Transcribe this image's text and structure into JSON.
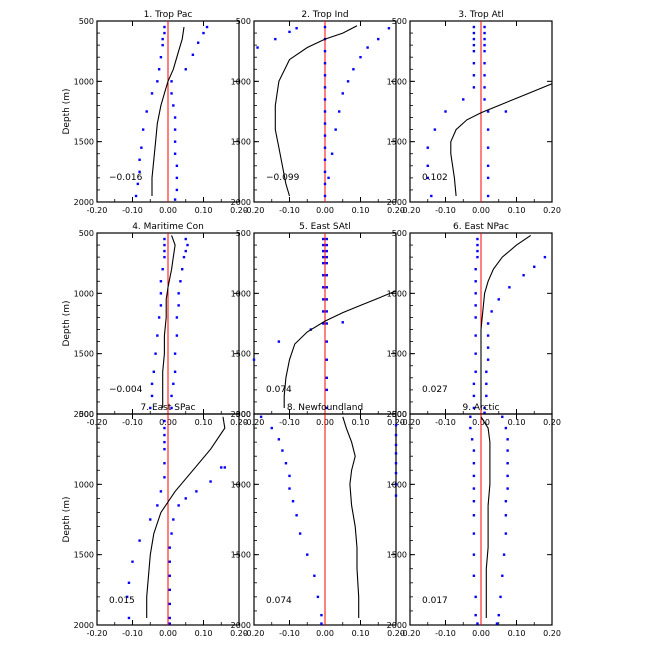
{
  "ylabel": "Depth (m)",
  "styles": {
    "profile": "#000000",
    "dots": "#0000ff",
    "zero": "#ff0000"
  },
  "chart_data": [
    {
      "type": "line",
      "title": "1. Trop Pac",
      "value_label": "-0.016",
      "xlim": [
        -0.2,
        0.2
      ],
      "ylim": [
        2000,
        500
      ],
      "xticks": [
        "-0.20",
        "-0.10",
        "0.00",
        "0.10",
        "0.20"
      ],
      "yticks": [
        "500",
        "1000",
        "1500",
        "2000"
      ],
      "line": {
        "x": [
          0.045,
          0.04,
          0.03,
          0.015,
          0.0,
          -0.01,
          -0.02,
          -0.03,
          -0.035,
          -0.04,
          -0.045,
          -0.045
        ],
        "y": [
          550,
          650,
          750,
          900,
          1000,
          1100,
          1200,
          1350,
          1500,
          1650,
          1800,
          1950
        ]
      },
      "dots_left": {
        "x": [
          -0.01,
          -0.01,
          -0.015,
          -0.015,
          -0.02,
          -0.025,
          -0.03,
          -0.045,
          -0.06,
          -0.07,
          -0.075,
          -0.08,
          -0.08,
          -0.085,
          -0.09
        ],
        "y": [
          550,
          600,
          650,
          700,
          800,
          900,
          1000,
          1100,
          1250,
          1400,
          1550,
          1650,
          1750,
          1850,
          1950
        ]
      },
      "dots_right": {
        "x": [
          0.01,
          0.01,
          0.015,
          0.02,
          0.02,
          0.02,
          0.02,
          0.025,
          0.025,
          0.025,
          0.02
        ],
        "y": [
          1000,
          1100,
          1200,
          1300,
          1400,
          1500,
          1600,
          1700,
          1800,
          1900,
          1980
        ]
      },
      "dots_extra": {
        "x": [
          0.11,
          0.1,
          0.085,
          0.07,
          0.05
        ],
        "y": [
          550,
          600,
          680,
          780,
          900
        ]
      }
    },
    {
      "type": "line",
      "title": "2. Trop Ind",
      "value_label": "-0.099",
      "xlim": [
        -0.2,
        0.2
      ],
      "ylim": [
        2000,
        500
      ],
      "xticks": [
        "-0.20",
        "-0.10",
        "0.00",
        "0.10",
        "0.20"
      ],
      "yticks": [
        "500",
        "1000",
        "1500",
        "2000"
      ],
      "line": {
        "x": [
          0.09,
          0.05,
          0.0,
          -0.05,
          -0.1,
          -0.13,
          -0.14,
          -0.14,
          -0.13,
          -0.12,
          -0.11,
          -0.1
        ],
        "y": [
          540,
          600,
          650,
          720,
          820,
          1000,
          1200,
          1400,
          1550,
          1700,
          1850,
          1950
        ]
      },
      "dots_left": {
        "x": [
          -0.19,
          -0.14,
          -0.1,
          -0.08
        ],
        "y": [
          720,
          650,
          590,
          560
        ]
      },
      "dots_right": {
        "x": [
          0.18,
          0.15,
          0.12,
          0.1,
          0.08,
          0.065,
          0.05,
          0.04,
          0.03,
          0.02,
          0.01
        ],
        "y": [
          560,
          650,
          720,
          800,
          900,
          1000,
          1100,
          1250,
          1400,
          1600,
          1800
        ]
      },
      "dots_extra": {
        "x": [
          0.0,
          0.0,
          0.0,
          0.0,
          0.0,
          0.0,
          0.0,
          0.0,
          0.0,
          0.0,
          0.0,
          0.0,
          0.0,
          0.0,
          0.0
        ],
        "y": [
          550,
          650,
          750,
          850,
          950,
          1050,
          1150,
          1250,
          1350,
          1450,
          1550,
          1650,
          1750,
          1850,
          1950
        ]
      }
    },
    {
      "type": "line",
      "title": "3. Trop Atl",
      "value_label": "0.102",
      "xlim": [
        -0.2,
        0.2
      ],
      "ylim": [
        2000,
        500
      ],
      "xticks": [
        "-0.20",
        "-0.10",
        "0.00",
        "0.10",
        "0.20"
      ],
      "yticks": [
        "500",
        "1000",
        "1500",
        "2000"
      ],
      "line": {
        "x": [
          0.2,
          0.15,
          0.1,
          0.05,
          0.0,
          -0.04,
          -0.07,
          -0.085,
          -0.085,
          -0.08,
          -0.075,
          -0.07
        ],
        "y": [
          1020,
          1080,
          1140,
          1200,
          1260,
          1320,
          1400,
          1500,
          1600,
          1700,
          1800,
          1950
        ]
      },
      "dots_left": {
        "x": [
          -0.02,
          -0.02,
          -0.02,
          -0.02,
          -0.02,
          -0.02,
          -0.02,
          -0.02,
          -0.05,
          -0.1,
          -0.13,
          -0.15,
          -0.15,
          -0.15,
          -0.14
        ],
        "y": [
          550,
          600,
          650,
          700,
          750,
          850,
          950,
          1050,
          1150,
          1250,
          1400,
          1550,
          1700,
          1800,
          1950
        ]
      },
      "dots_right": {
        "x": [
          0.01,
          0.01,
          0.01,
          0.01,
          0.01,
          0.01,
          0.01,
          0.01,
          0.01,
          0.02,
          0.02,
          0.02,
          0.02,
          0.02,
          0.02
        ],
        "y": [
          550,
          600,
          650,
          700,
          750,
          850,
          950,
          1050,
          1150,
          1250,
          1400,
          1550,
          1700,
          1800,
          1950
        ]
      },
      "dots_extra": {
        "x": [
          0.07
        ],
        "y": [
          1250
        ]
      }
    },
    {
      "type": "line",
      "title": "4. Maritime Con",
      "value_label": "-0.004",
      "xlim": [
        -0.2,
        0.2
      ],
      "ylim": [
        2000,
        500
      ],
      "xticks": [
        "-0.20",
        "-0.10",
        "0.00",
        "0.10",
        "0.20"
      ],
      "yticks": [
        "500",
        "1000",
        "1500",
        "2000"
      ],
      "line": {
        "x": [
          0.01,
          0.02,
          0.015,
          0.01,
          0.0,
          -0.005,
          -0.005,
          -0.01,
          -0.01,
          -0.015,
          -0.015,
          -0.015
        ],
        "y": [
          520,
          600,
          700,
          800,
          950,
          1050,
          1200,
          1350,
          1500,
          1650,
          1800,
          1950
        ]
      },
      "dots_left": {
        "x": [
          -0.01,
          -0.01,
          -0.01,
          -0.01,
          -0.015,
          -0.02,
          -0.02,
          -0.02,
          -0.025,
          -0.03,
          -0.035,
          -0.04,
          -0.045,
          -0.045,
          -0.05
        ],
        "y": [
          550,
          600,
          650,
          700,
          800,
          900,
          1000,
          1100,
          1200,
          1350,
          1500,
          1650,
          1750,
          1850,
          1950
        ]
      },
      "dots_right": {
        "x": [
          0.05,
          0.055,
          0.05,
          0.045,
          0.04,
          0.035,
          0.03,
          0.03,
          0.025,
          0.025,
          0.02,
          0.02,
          0.015,
          0.01,
          0.01
        ],
        "y": [
          550,
          600,
          650,
          700,
          800,
          900,
          1000,
          1100,
          1200,
          1350,
          1500,
          1650,
          1750,
          1850,
          1950
        ]
      },
      "dots_extra": {
        "x": [],
        "y": []
      }
    },
    {
      "type": "line",
      "title": "5. East SAtl",
      "value_label": "0.074",
      "xlim": [
        -0.2,
        0.2
      ],
      "ylim": [
        2000,
        500
      ],
      "xticks": [
        "-0.20",
        "-0.10",
        "0.00",
        "0.10",
        "0.20"
      ],
      "yticks": [
        "500",
        "1000",
        "1500",
        "2000"
      ],
      "line": {
        "x": [
          0.2,
          0.15,
          0.1,
          0.05,
          0.0,
          -0.05,
          -0.085,
          -0.1,
          -0.11,
          -0.115,
          -0.115
        ],
        "y": [
          980,
          1040,
          1100,
          1160,
          1230,
          1320,
          1420,
          1550,
          1700,
          1850,
          1950
        ]
      },
      "dots_left": {
        "x": [
          -0.005,
          -0.005,
          -0.005,
          -0.005,
          -0.005,
          -0.005,
          -0.005,
          -0.005,
          -0.005,
          -0.005,
          -0.04,
          -0.13,
          -0.2
        ],
        "y": [
          550,
          600,
          650,
          700,
          750,
          850,
          950,
          1050,
          1150,
          1250,
          1300,
          1400,
          1550
        ]
      },
      "dots_right": {
        "x": [
          0.005,
          0.005,
          0.005,
          0.005,
          0.005,
          0.005,
          0.005,
          0.005,
          0.005,
          0.005,
          0.005,
          0.005,
          0.005,
          0.005,
          0.005
        ],
        "y": [
          550,
          600,
          650,
          700,
          750,
          850,
          950,
          1050,
          1150,
          1250,
          1400,
          1550,
          1700,
          1800,
          1950
        ]
      },
      "dots_extra": {
        "x": [
          0.05
        ],
        "y": [
          1240
        ]
      }
    },
    {
      "type": "line",
      "title": "6. East NPac",
      "value_label": "0.027",
      "xlim": [
        -0.2,
        0.2
      ],
      "ylim": [
        2000,
        500
      ],
      "xticks": [
        "-0.20",
        "-0.10",
        "0.00",
        "0.10",
        "0.20"
      ],
      "yticks": [
        "500",
        "1000",
        "1500",
        "2000"
      ],
      "line": {
        "x": [
          0.14,
          0.1,
          0.06,
          0.035,
          0.02,
          0.01,
          0.005,
          0.0,
          0.0,
          0.0,
          0.0,
          0.0
        ],
        "y": [
          520,
          600,
          700,
          800,
          900,
          1000,
          1150,
          1300,
          1450,
          1600,
          1800,
          1950
        ]
      },
      "dots_left": {
        "x": [
          -0.01,
          -0.01,
          -0.01,
          -0.01,
          -0.015,
          -0.015,
          -0.015,
          -0.015,
          -0.015,
          -0.015,
          -0.015,
          -0.015,
          -0.02,
          -0.02,
          -0.02
        ],
        "y": [
          550,
          600,
          650,
          700,
          800,
          900,
          1000,
          1100,
          1200,
          1350,
          1500,
          1650,
          1750,
          1850,
          1950
        ]
      },
      "dots_right": {
        "x": [
          0.18,
          0.15,
          0.12,
          0.08,
          0.05,
          0.03,
          0.02,
          0.02,
          0.02,
          0.02,
          0.015,
          0.015,
          0.015,
          0.01,
          0.01
        ],
        "y": [
          700,
          780,
          850,
          950,
          1050,
          1150,
          1250,
          1350,
          1450,
          1550,
          1650,
          1750,
          1850,
          1950,
          1990
        ]
      },
      "dots_extra": {
        "x": [],
        "y": []
      }
    },
    {
      "type": "line",
      "title": "7. East SPac",
      "value_label": "0.015",
      "xlim": [
        -0.2,
        0.2
      ],
      "ylim": [
        2000,
        500
      ],
      "xticks": [
        "-0.20",
        "-0.10",
        "0.00",
        "0.10",
        "0.20"
      ],
      "yticks": [
        "500",
        "1000",
        "1500",
        "2000"
      ],
      "line": {
        "x": [
          0.155,
          0.16,
          0.12,
          0.07,
          0.02,
          -0.02,
          -0.04,
          -0.05,
          -0.055,
          -0.06,
          -0.06,
          -0.06
        ],
        "y": [
          520,
          600,
          750,
          900,
          1050,
          1200,
          1350,
          1500,
          1650,
          1800,
          1900,
          1950
        ]
      },
      "dots_left": {
        "x": [
          -0.01,
          -0.01,
          -0.01,
          -0.01,
          -0.01,
          -0.01,
          -0.01,
          -0.02,
          -0.03,
          -0.05,
          -0.08,
          -0.1,
          -0.11,
          -0.115,
          -0.11
        ],
        "y": [
          550,
          600,
          650,
          700,
          750,
          850,
          950,
          1050,
          1150,
          1250,
          1400,
          1550,
          1700,
          1800,
          1950
        ]
      },
      "dots_right": {
        "x": [
          0.16,
          0.15,
          0.12,
          0.08,
          0.05,
          0.03,
          0.015,
          0.01,
          0.005,
          0.005,
          0.005,
          0.005,
          0.005,
          0.005,
          0.005
        ],
        "y": [
          880,
          880,
          980,
          1050,
          1100,
          1150,
          1250,
          1350,
          1450,
          1550,
          1650,
          1750,
          1850,
          1950,
          1990
        ]
      },
      "dots_extra": {
        "x": [],
        "y": []
      }
    },
    {
      "type": "line",
      "title": "8. Newfoundland",
      "value_label": "0.074",
      "xlim": [
        -0.2,
        0.2
      ],
      "ylim": [
        2000,
        500
      ],
      "xticks": [
        "-0.20",
        "-0.10",
        "0.00",
        "0.10",
        "0.20"
      ],
      "yticks": [
        "500",
        "1000",
        "1500",
        "2000"
      ],
      "line": {
        "x": [
          0.05,
          0.06,
          0.075,
          0.085,
          0.075,
          0.07,
          0.075,
          0.085,
          0.09,
          0.09,
          0.095,
          0.095
        ],
        "y": [
          520,
          600,
          700,
          800,
          900,
          1000,
          1150,
          1300,
          1450,
          1600,
          1800,
          1950
        ]
      },
      "dots_left": {
        "x": [
          -0.18,
          -0.15,
          -0.13,
          -0.12,
          -0.11,
          -0.1,
          -0.1,
          -0.09,
          -0.08,
          -0.07,
          -0.05,
          -0.03,
          -0.02,
          -0.01,
          -0.01
        ],
        "y": [
          520,
          600,
          680,
          760,
          850,
          940,
          1030,
          1120,
          1220,
          1350,
          1500,
          1650,
          1800,
          1930,
          1990
        ]
      },
      "dots_right": {
        "x": [
          0.2,
          0.2,
          0.2,
          0.2,
          0.2,
          0.2,
          0.2,
          0.2
        ],
        "y": [
          580,
          650,
          720,
          780,
          850,
          920,
          1000,
          1080
        ]
      },
      "dots_extra": {
        "x": [],
        "y": []
      }
    },
    {
      "type": "line",
      "title": "9. Arctic",
      "value_label": "0.017",
      "xlim": [
        -0.2,
        0.2
      ],
      "ylim": [
        2000,
        500
      ],
      "xticks": [
        "-0.20",
        "-0.10",
        "0.00",
        "0.10",
        "0.20"
      ],
      "yticks": [
        "500",
        "1000",
        "1500",
        "2000"
      ],
      "line": {
        "x": [
          0.0,
          0.02,
          0.025,
          0.025,
          0.025,
          0.025,
          0.02,
          0.02,
          0.02,
          0.015,
          0.015,
          0.015
        ],
        "y": [
          520,
          600,
          700,
          800,
          900,
          1000,
          1150,
          1300,
          1450,
          1600,
          1800,
          1950
        ]
      },
      "dots_left": {
        "x": [
          -0.03,
          -0.03,
          -0.025,
          -0.02,
          -0.02,
          -0.02,
          -0.02,
          -0.02,
          -0.02,
          -0.02,
          -0.02,
          -0.02,
          -0.015,
          -0.015,
          -0.01
        ],
        "y": [
          520,
          600,
          680,
          760,
          850,
          940,
          1030,
          1120,
          1220,
          1350,
          1500,
          1650,
          1800,
          1930,
          1990
        ]
      },
      "dots_right": {
        "x": [
          0.06,
          0.07,
          0.075,
          0.075,
          0.075,
          0.075,
          0.075,
          0.07,
          0.07,
          0.07,
          0.065,
          0.06,
          0.055,
          0.05,
          0.045
        ],
        "y": [
          520,
          600,
          680,
          760,
          850,
          940,
          1030,
          1120,
          1220,
          1350,
          1500,
          1650,
          1800,
          1930,
          1990
        ]
      },
      "dots_extra": {
        "x": [],
        "y": []
      }
    }
  ]
}
